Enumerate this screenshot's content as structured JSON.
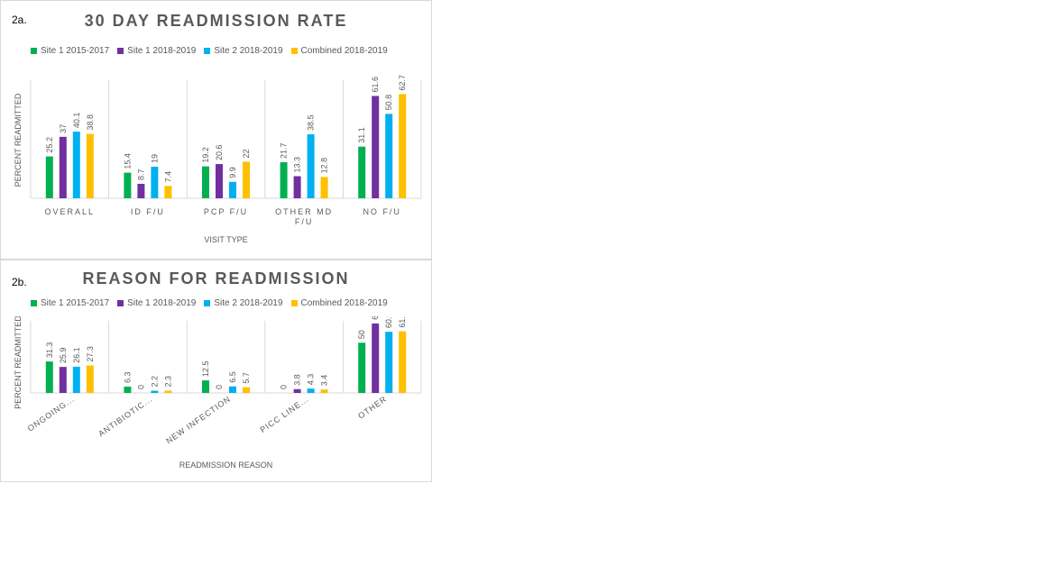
{
  "chart_data": [
    {
      "type": "bar",
      "panel_label": "2a.",
      "title": "30 DAY READMISSION RATE",
      "xlabel": "VISIT TYPE",
      "ylabel": "PERCENT READMITTED",
      "categories": [
        "OVERALL",
        "ID F/U",
        "PCP F/U",
        "OTHER MD F/U",
        "NO F/U"
      ],
      "series": [
        {
          "name": "Site 1 2015-2017",
          "color": "#00b050",
          "values": [
            25.2,
            15.4,
            19.2,
            21.7,
            31.1
          ]
        },
        {
          "name": "Site 1 2018-2019",
          "color": "#7030a0",
          "values": [
            37,
            8.7,
            20.6,
            13.3,
            61.6
          ]
        },
        {
          "name": "Site 2 2018-2019",
          "color": "#00b0f0",
          "values": [
            40.1,
            19,
            9.9,
            38.5,
            50.8
          ]
        },
        {
          "name": "Combined 2018-2019",
          "color": "#ffc000",
          "values": [
            38.8,
            7.4,
            22,
            12.8,
            62.7
          ]
        }
      ],
      "ylim": [
        0,
        70
      ],
      "legend": "top"
    },
    {
      "type": "bar",
      "panel_label": "2b.",
      "title": "REASON FOR READMISSION",
      "xlabel": "READMISSION REASON",
      "ylabel": "PERCENT READMITTED",
      "categories": [
        "ONGOING...",
        "ANTIBIOTIC...",
        "NEW INFECTION",
        "PICC LINE...",
        "OTHER"
      ],
      "series": [
        {
          "name": "Site 1 2015-2017",
          "color": "#00b050",
          "values": [
            31.3,
            6.3,
            12.5,
            0,
            50
          ]
        },
        {
          "name": "Site 1 2018-2019",
          "color": "#7030a0",
          "values": [
            25.9,
            0,
            0,
            3.8,
            69.2
          ]
        },
        {
          "name": "Site 2 2018-2019",
          "color": "#00b0f0",
          "values": [
            26.1,
            2.2,
            6.5,
            4.3,
            60.9
          ]
        },
        {
          "name": "Combined 2018-2019",
          "color": "#ffc000",
          "values": [
            27.3,
            2.3,
            5.7,
            3.4,
            61.4
          ]
        }
      ],
      "ylim": [
        0,
        70
      ],
      "legend": "top"
    }
  ]
}
